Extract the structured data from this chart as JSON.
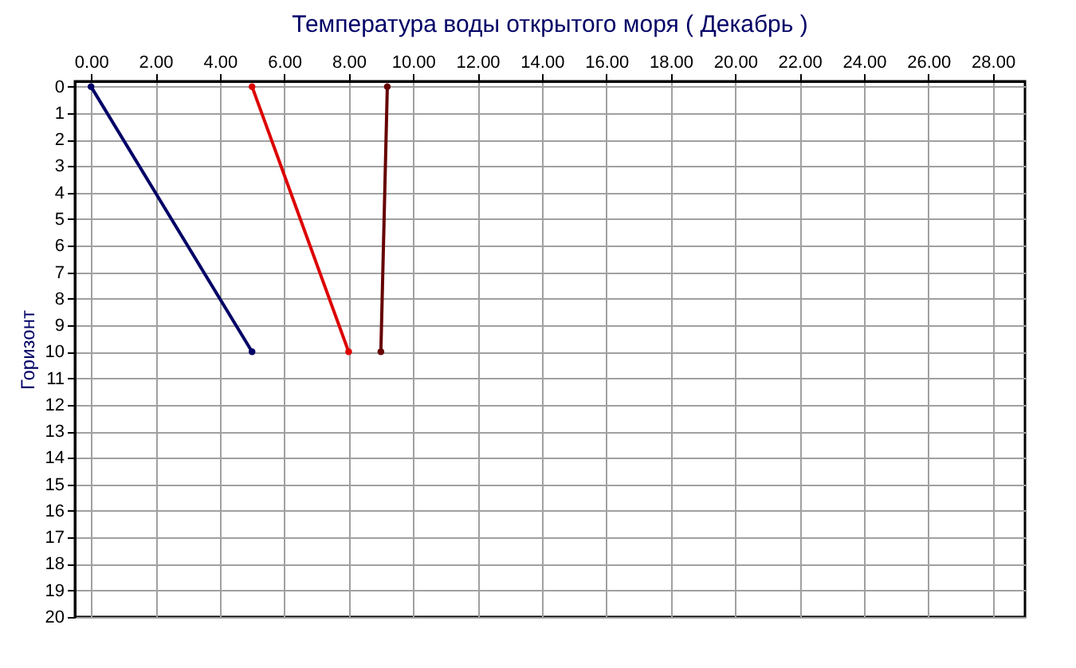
{
  "chart_data": {
    "type": "line",
    "title": "Температура воды открытого моря     ( Декабрь )",
    "ylabel": "Горизонт",
    "series": [
      {
        "color": "#000066",
        "x": [
          0,
          5
        ],
        "values": [
          0,
          10
        ]
      },
      {
        "color": "#dd0000",
        "x": [
          5,
          8
        ],
        "values": [
          0,
          10
        ]
      },
      {
        "color": "#660000",
        "x": [
          9.2,
          9.0
        ],
        "values": [
          0,
          10
        ]
      }
    ],
    "xlim": [
      -0.5,
      29
    ],
    "ylim": [
      20,
      -0.2
    ],
    "xticks": [
      {
        "value": 0,
        "label": "0.00"
      },
      {
        "value": 2,
        "label": "2.00"
      },
      {
        "value": 4,
        "label": "4.00"
      },
      {
        "value": 6,
        "label": "6.00"
      },
      {
        "value": 8,
        "label": "8.00"
      },
      {
        "value": 10,
        "label": "10.00"
      },
      {
        "value": 12,
        "label": "12.00"
      },
      {
        "value": 14,
        "label": "14.00"
      },
      {
        "value": 16,
        "label": "16.00"
      },
      {
        "value": 18,
        "label": "18.00"
      },
      {
        "value": 20,
        "label": "20.00"
      },
      {
        "value": 22,
        "label": "22.00"
      },
      {
        "value": 24,
        "label": "24.00"
      },
      {
        "value": 26,
        "label": "26.00"
      },
      {
        "value": 28,
        "label": "28.00"
      }
    ],
    "yticks": [
      0,
      1,
      2,
      3,
      4,
      5,
      6,
      7,
      8,
      9,
      10,
      11,
      12,
      13,
      14,
      15,
      16,
      17,
      18,
      19,
      20
    ],
    "grid": true,
    "marker": "circle",
    "line_style": "solid"
  }
}
